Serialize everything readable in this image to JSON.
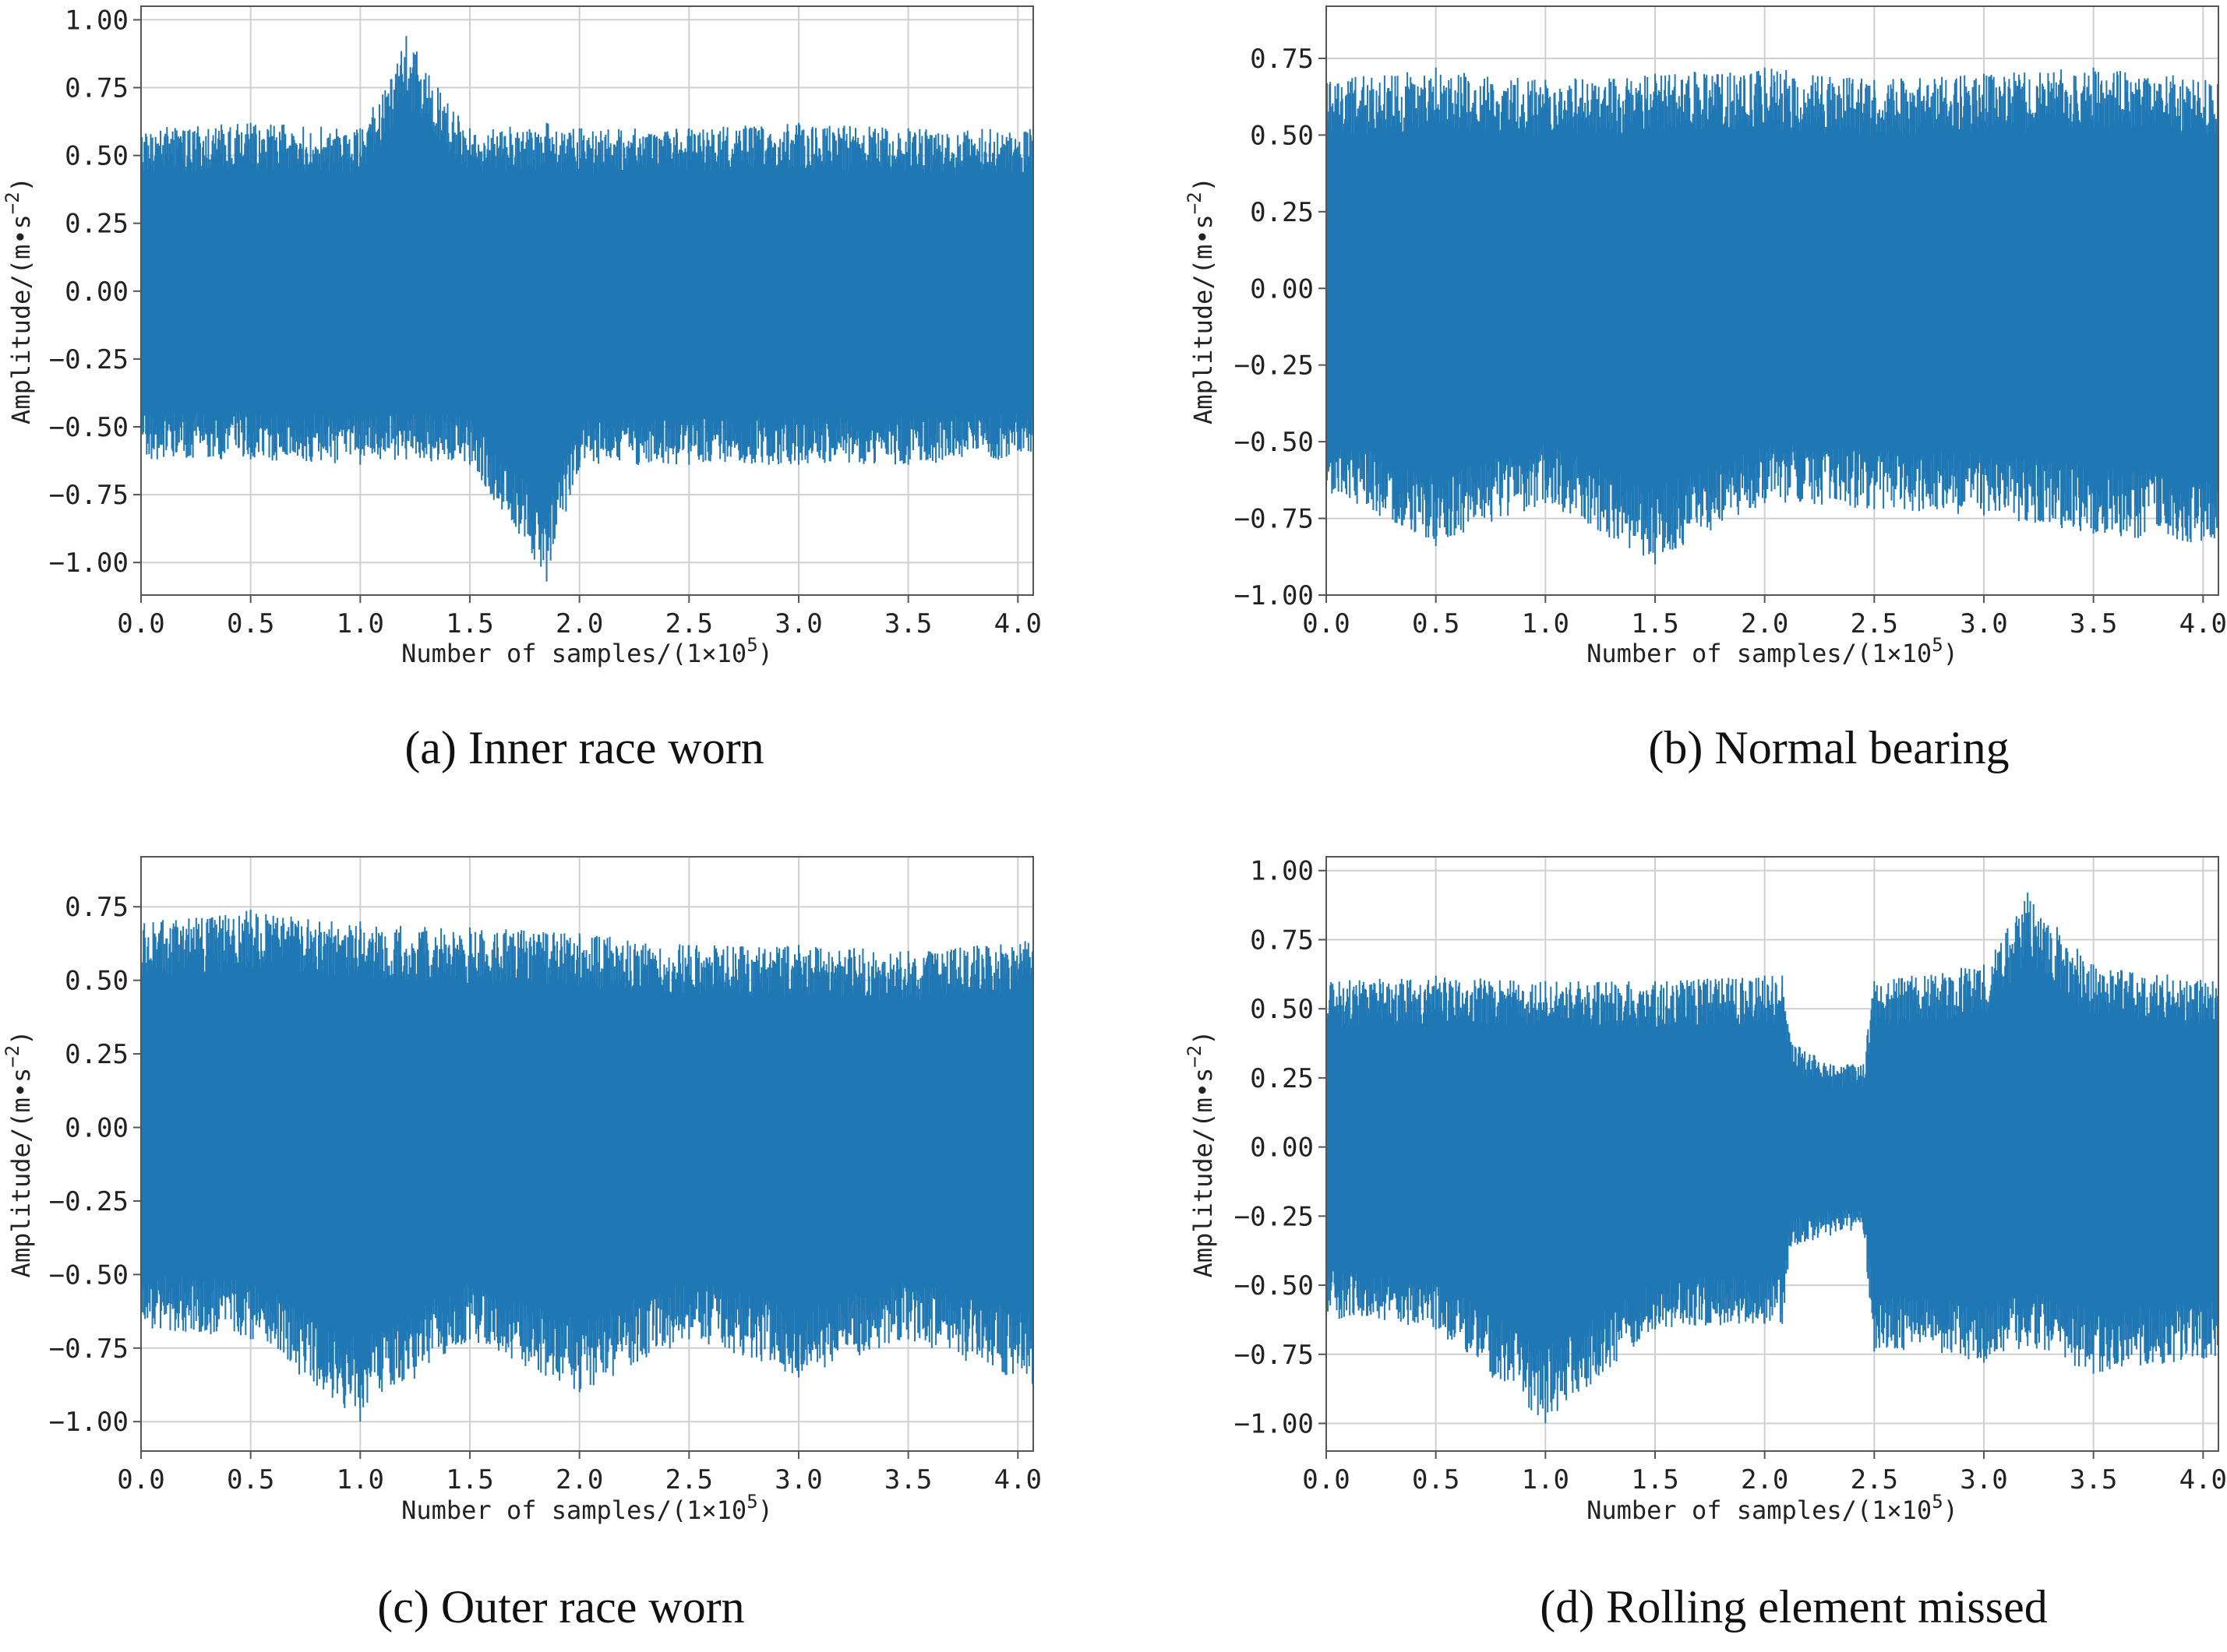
{
  "chart_data": [
    {
      "type": "line",
      "caption": "(a) Inner race worn",
      "xlabel_main": "Number of samples/(1×10",
      "xlabel_sup": "5",
      "xlabel_close": ")",
      "ylabel_main": "Amplitude/(m•s",
      "ylabel_sup": "−2",
      "ylabel_close": ")",
      "xlim": [
        0,
        4.07
      ],
      "ylim": [
        -1.12,
        1.05
      ],
      "xticks": [
        0.0,
        0.5,
        1.0,
        1.5,
        2.0,
        2.5,
        3.0,
        3.5,
        4.0
      ],
      "xtick_labels": [
        "0.0",
        "0.5",
        "1.0",
        "1.5",
        "2.0",
        "2.5",
        "3.0",
        "3.5",
        "4.0"
      ],
      "yticks": [
        1.0,
        0.75,
        0.5,
        0.25,
        0.0,
        -0.25,
        -0.5,
        -0.75,
        -1.0
      ],
      "ytick_labels": [
        "1.00",
        "0.75",
        "0.50",
        "0.25",
        "0.00",
        "−0.25",
        "−0.50",
        "−0.75",
        "−1.00"
      ],
      "grid": true,
      "series": [
        {
          "color": "#1f77b4",
          "x": [
            0.0,
            0.5,
            1.0,
            1.21,
            1.5,
            1.85,
            2.0,
            2.5,
            3.0,
            3.5,
            4.07
          ],
          "upper_envelope": [
            0.6,
            0.62,
            0.6,
            0.94,
            0.6,
            0.62,
            0.6,
            0.6,
            0.62,
            0.6,
            0.6
          ],
          "lower_envelope": [
            -0.62,
            -0.62,
            -0.64,
            -0.62,
            -0.64,
            -1.07,
            -0.65,
            -0.64,
            -0.64,
            -0.64,
            -0.62
          ]
        }
      ]
    },
    {
      "type": "line",
      "caption": "(b) Normal bearing",
      "xlabel_main": "Number of samples/(1×10",
      "xlabel_sup": "5",
      "xlabel_close": ")",
      "ylabel_main": "Amplitude/(m•s",
      "ylabel_sup": "−2",
      "ylabel_close": ")",
      "xlim": [
        0,
        4.07
      ],
      "ylim": [
        -1.0,
        0.92
      ],
      "xticks": [
        0.0,
        0.5,
        1.0,
        1.5,
        2.0,
        2.5,
        3.0,
        3.5,
        4.0
      ],
      "xtick_labels": [
        "0.0",
        "0.5",
        "1.0",
        "1.5",
        "2.0",
        "2.5",
        "3.0",
        "3.5",
        "4.0"
      ],
      "yticks": [
        0.75,
        0.5,
        0.25,
        0.0,
        -0.25,
        -0.5,
        -0.75,
        -1.0
      ],
      "ytick_labels": [
        "0.75",
        "0.50",
        "0.25",
        "0.00",
        "−0.25",
        "−0.50",
        "−0.75",
        "−1.00"
      ],
      "grid": true,
      "series": [
        {
          "color": "#1f77b4",
          "x": [
            0.0,
            0.5,
            1.0,
            1.5,
            2.0,
            2.5,
            3.0,
            3.5,
            4.07
          ],
          "upper_envelope": [
            0.68,
            0.72,
            0.68,
            0.7,
            0.72,
            0.68,
            0.7,
            0.72,
            0.68
          ],
          "lower_envelope": [
            -0.66,
            -0.84,
            -0.7,
            -0.9,
            -0.7,
            -0.72,
            -0.74,
            -0.8,
            -0.84
          ]
        }
      ]
    },
    {
      "type": "line",
      "caption": "(c) Outer race worn",
      "xlabel_main": "Number of samples/(1×10",
      "xlabel_sup": "5",
      "xlabel_close": ")",
      "ylabel_main": "Amplitude/(m•s",
      "ylabel_sup": "−2",
      "ylabel_close": ")",
      "xlim": [
        0,
        4.07
      ],
      "ylim": [
        -1.1,
        0.92
      ],
      "xticks": [
        0.0,
        0.5,
        1.0,
        1.5,
        2.0,
        2.5,
        3.0,
        3.5,
        4.0
      ],
      "xtick_labels": [
        "0.0",
        "0.5",
        "1.0",
        "1.5",
        "2.0",
        "2.5",
        "3.0",
        "3.5",
        "4.0"
      ],
      "yticks": [
        0.75,
        0.5,
        0.25,
        0.0,
        -0.25,
        -0.5,
        -0.75,
        -1.0
      ],
      "ytick_labels": [
        "0.75",
        "0.50",
        "0.25",
        "0.00",
        "−0.25",
        "−0.50",
        "−0.75",
        "−1.00"
      ],
      "grid": true,
      "series": [
        {
          "color": "#1f77b4",
          "x": [
            0.0,
            0.5,
            1.0,
            1.5,
            2.0,
            2.5,
            3.0,
            3.5,
            4.07
          ],
          "upper_envelope": [
            0.7,
            0.74,
            0.7,
            0.68,
            0.66,
            0.62,
            0.62,
            0.6,
            0.64
          ],
          "lower_envelope": [
            -0.68,
            -0.72,
            -1.0,
            -0.72,
            -0.9,
            -0.72,
            -0.85,
            -0.72,
            -0.88
          ]
        }
      ]
    },
    {
      "type": "line",
      "caption": "(d) Rolling element missed",
      "xlabel_main": "Number of samples/(1×10",
      "xlabel_sup": "5",
      "xlabel_close": ")",
      "ylabel_main": "Amplitude/(m•s",
      "ylabel_sup": "−2",
      "ylabel_close": ")",
      "xlim": [
        0,
        4.07
      ],
      "ylim": [
        -1.1,
        1.05
      ],
      "xticks": [
        0.0,
        0.5,
        1.0,
        1.5,
        2.0,
        2.5,
        3.0,
        3.5,
        4.0
      ],
      "xtick_labels": [
        "0.0",
        "0.5",
        "1.0",
        "1.5",
        "2.0",
        "2.5",
        "3.0",
        "3.5",
        "4.0"
      ],
      "yticks": [
        1.0,
        0.75,
        0.5,
        0.25,
        0.0,
        -0.25,
        -0.5,
        -0.75,
        -1.0
      ],
      "ytick_labels": [
        "1.00",
        "0.75",
        "0.50",
        "0.25",
        "0.00",
        "−0.25",
        "−0.50",
        "−0.75",
        "−1.00"
      ],
      "grid": true,
      "series": [
        {
          "color": "#1f77b4",
          "x": [
            0.0,
            0.5,
            1.0,
            1.5,
            2.0,
            2.08,
            2.12,
            2.3,
            2.45,
            2.5,
            3.0,
            3.2,
            3.5,
            4.07
          ],
          "upper_envelope": [
            0.6,
            0.62,
            0.6,
            0.6,
            0.62,
            0.62,
            0.38,
            0.3,
            0.3,
            0.6,
            0.66,
            0.92,
            0.66,
            0.6
          ],
          "lower_envelope": [
            -0.62,
            -0.66,
            -1.0,
            -0.66,
            -0.64,
            -0.64,
            -0.36,
            -0.32,
            -0.3,
            -0.74,
            -0.78,
            -0.72,
            -0.82,
            -0.76
          ]
        }
      ]
    }
  ]
}
